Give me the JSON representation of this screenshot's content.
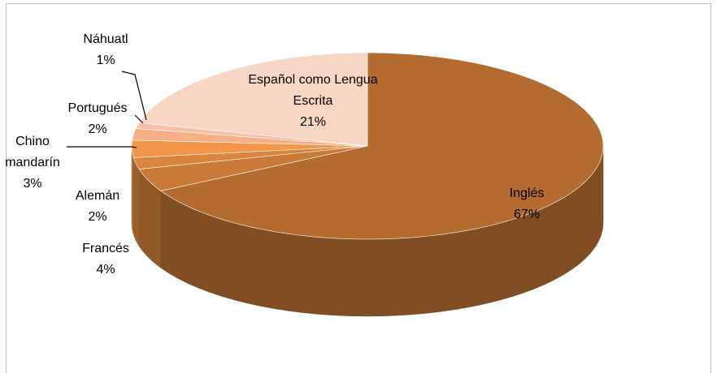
{
  "chart_data": {
    "type": "pie3d",
    "categories": [
      "Inglés",
      "Francés",
      "Alemán",
      "Chino mandarín",
      "Portugués",
      "Náhuatl",
      "Español como Lengua Escrita"
    ],
    "values": [
      67,
      4,
      2,
      3,
      2,
      1,
      21
    ],
    "value_labels": [
      "67%",
      "4%",
      "2%",
      "3%",
      "2%",
      "1%",
      "21%"
    ],
    "colors": [
      "#b36b30",
      "#c97a38",
      "#d9853d",
      "#f2964b",
      "#f5ae86",
      "#f7c0a4",
      "#f8d6c4"
    ]
  }
}
